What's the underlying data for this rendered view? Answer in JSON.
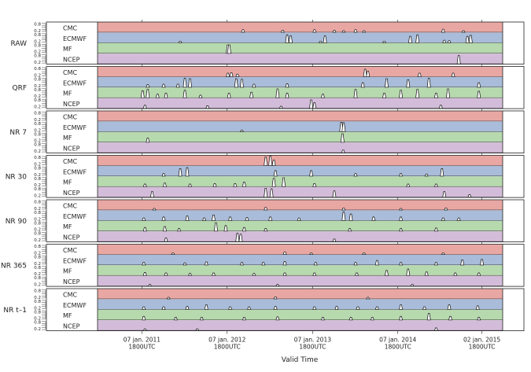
{
  "chart_data": {
    "type": "area",
    "title": "",
    "xlabel": "Valid Time",
    "ylabel": "",
    "x_ticks": [
      {
        "date": "2011-01-07",
        "line1": "07 jan. 2011",
        "line2": "1800UTC"
      },
      {
        "date": "2012-01-07",
        "line1": "07 jan. 2012",
        "line2": "1800UTC"
      },
      {
        "date": "2013-01-07",
        "line1": "07 jan. 2013",
        "line2": "1800UTC"
      },
      {
        "date": "2014-01-07",
        "line1": "07 jan. 2014",
        "line2": "1800UTC"
      },
      {
        "date": "2015-01-02",
        "line1": "02 jan. 2015",
        "line2": "1800UTC"
      }
    ],
    "x_range": [
      "2010-07-01",
      "2015-04-01"
    ],
    "y_range": [
      0,
      1
    ],
    "y_tick_labels": [
      "0.8",
      "0.2"
    ],
    "band_order": [
      "CMC",
      "ECMWF",
      "MF",
      "NCEP"
    ],
    "band_colors": {
      "CMC": "#e9a7a3",
      "ECMWF": "#a9bcd9",
      "MF": "#b7d9ae",
      "NCEP": "#d3bcd9"
    },
    "panels": [
      {
        "label": "RAW",
        "bands": {
          "CMC": [
            [
              "2012-03-15",
              0.3
            ],
            [
              "2012-09-01",
              0.25
            ],
            [
              "2013-01-15",
              0.3
            ],
            [
              "2013-04-10",
              0.25
            ],
            [
              "2013-05-20",
              0.2
            ],
            [
              "2013-07-10",
              0.3
            ],
            [
              "2013-08-15",
              0.2
            ],
            [
              "2014-07-20",
              0.35
            ],
            [
              "2014-10-15",
              0.2
            ]
          ],
          "ECMWF": [
            [
              "2011-06-20",
              0.2
            ],
            [
              "2012-09-20",
              0.85
            ],
            [
              "2012-10-05",
              0.75
            ],
            [
              "2013-02-10",
              0.2
            ],
            [
              "2013-03-01",
              0.75
            ],
            [
              "2013-11-10",
              0.2
            ],
            [
              "2014-03-01",
              0.7
            ],
            [
              "2014-04-01",
              0.85
            ],
            [
              "2014-07-25",
              0.3
            ],
            [
              "2014-08-15",
              0.25
            ],
            [
              "2014-11-01",
              0.7
            ],
            [
              "2014-11-15",
              0.8
            ]
          ],
          "MF": [
            [
              "2012-01-10",
              0.9
            ],
            [
              "2012-01-16",
              0.9
            ]
          ],
          "NCEP": [
            [
              "2014-09-25",
              0.9
            ]
          ]
        }
      },
      {
        "label": "QRF",
        "bands": {
          "CMC": [
            [
              "2012-01-10",
              0.4
            ],
            [
              "2012-01-25",
              0.45
            ],
            [
              "2012-02-20",
              0.3
            ],
            [
              "2013-08-20",
              0.8
            ],
            [
              "2013-09-01",
              0.6
            ],
            [
              "2014-04-10",
              0.4
            ],
            [
              "2014-09-01",
              0.4
            ]
          ],
          "ECMWF": [
            [
              "2011-02-01",
              0.3
            ],
            [
              "2011-04-10",
              0.35
            ],
            [
              "2011-06-10",
              0.35
            ],
            [
              "2011-07-10",
              0.95
            ],
            [
              "2011-08-01",
              0.9
            ],
            [
              "2012-02-15",
              0.9
            ],
            [
              "2012-03-10",
              0.85
            ],
            [
              "2012-05-01",
              0.35
            ],
            [
              "2012-09-20",
              0.4
            ],
            [
              "2013-08-10",
              0.5
            ],
            [
              "2013-11-20",
              0.9
            ],
            [
              "2014-02-20",
              0.8
            ],
            [
              "2014-05-20",
              0.95
            ],
            [
              "2014-12-20",
              0.5
            ]
          ],
          "MF": [
            [
              "2011-01-10",
              0.75
            ],
            [
              "2011-02-01",
              0.9
            ],
            [
              "2011-03-15",
              0.4
            ],
            [
              "2011-04-20",
              0.5
            ],
            [
              "2011-07-10",
              0.8
            ],
            [
              "2011-09-15",
              0.3
            ],
            [
              "2012-01-15",
              0.5
            ],
            [
              "2012-04-20",
              0.6
            ],
            [
              "2012-08-10",
              0.95
            ],
            [
              "2012-09-20",
              0.5
            ],
            [
              "2013-02-20",
              0.4
            ],
            [
              "2013-07-10",
              0.9
            ],
            [
              "2013-11-10",
              0.5
            ],
            [
              "2014-01-20",
              0.8
            ],
            [
              "2014-04-01",
              0.9
            ],
            [
              "2014-06-20",
              0.5
            ],
            [
              "2014-08-10",
              0.95
            ],
            [
              "2014-12-20",
              0.7
            ]
          ],
          "NCEP": [
            [
              "2011-01-20",
              0.35
            ],
            [
              "2011-10-15",
              0.3
            ],
            [
              "2012-08-25",
              0.25
            ],
            [
              "2013-01-01",
              0.9
            ],
            [
              "2013-01-15",
              0.6
            ],
            [
              "2014-07-10",
              0.35
            ]
          ]
        }
      },
      {
        "label": "NR 7",
        "bands": {
          "CMC": [],
          "ECMWF": [
            [
              "2012-03-10",
              0.2
            ],
            [
              "2013-05-10",
              1.0
            ],
            [
              "2013-05-20",
              0.95
            ]
          ],
          "MF": [
            [
              "2011-02-01",
              0.45
            ],
            [
              "2013-05-15",
              0.9
            ]
          ],
          "NCEP": [
            [
              "2013-05-18",
              0.3
            ]
          ]
        }
      },
      {
        "label": "NR 30",
        "bands": {
          "CMC": [
            [
              "2012-06-20",
              0.9
            ],
            [
              "2012-07-10",
              1.0
            ],
            [
              "2012-07-25",
              0.6
            ]
          ],
          "ECMWF": [
            [
              "2011-04-10",
              0.3
            ],
            [
              "2011-06-20",
              0.8
            ],
            [
              "2011-07-20",
              0.9
            ],
            [
              "2012-08-01",
              0.6
            ],
            [
              "2013-01-01",
              0.6
            ],
            [
              "2013-07-10",
              0.3
            ],
            [
              "2014-01-20",
              0.3
            ],
            [
              "2014-05-10",
              0.25
            ],
            [
              "2014-07-15",
              0.8
            ]
          ],
          "MF": [
            [
              "2011-01-20",
              0.3
            ],
            [
              "2011-04-15",
              0.4
            ],
            [
              "2011-08-01",
              0.3
            ],
            [
              "2011-11-15",
              0.35
            ],
            [
              "2012-02-10",
              0.35
            ],
            [
              "2012-03-20",
              0.5
            ],
            [
              "2012-07-25",
              0.9
            ],
            [
              "2012-09-05",
              0.95
            ],
            [
              "2013-01-15",
              0.35
            ],
            [
              "2014-02-20",
              0.3
            ],
            [
              "2014-06-20",
              0.3
            ]
          ],
          "NCEP": [
            [
              "2011-02-20",
              0.6
            ],
            [
              "2012-06-20",
              0.95
            ],
            [
              "2012-07-15",
              0.9
            ],
            [
              "2013-04-10",
              0.7
            ],
            [
              "2014-07-25",
              0.6
            ],
            [
              "2014-11-10",
              0.3
            ]
          ]
        }
      },
      {
        "label": "NR 90",
        "bands": {
          "CMC": [
            [
              "2011-03-01",
              0.2
            ],
            [
              "2012-06-20",
              0.3
            ],
            [
              "2013-05-20",
              0.25
            ],
            [
              "2014-01-20",
              0.2
            ],
            [
              "2014-08-01",
              0.25
            ]
          ],
          "ECMWF": [
            [
              "2011-01-15",
              0.3
            ],
            [
              "2011-04-10",
              0.4
            ],
            [
              "2011-07-20",
              0.5
            ],
            [
              "2011-10-01",
              0.3
            ],
            [
              "2011-11-10",
              0.6
            ],
            [
              "2012-01-20",
              0.4
            ],
            [
              "2012-04-01",
              0.35
            ],
            [
              "2012-07-10",
              0.4
            ],
            [
              "2012-11-10",
              0.3
            ],
            [
              "2013-05-20",
              0.9
            ],
            [
              "2013-06-20",
              0.7
            ],
            [
              "2013-09-25",
              0.4
            ],
            [
              "2014-01-20",
              0.4
            ],
            [
              "2014-07-20",
              0.3
            ],
            [
              "2014-09-25",
              0.3
            ]
          ],
          "MF": [
            [
              "2011-01-20",
              0.4
            ],
            [
              "2011-04-15",
              0.5
            ],
            [
              "2011-06-15",
              0.3
            ],
            [
              "2011-11-20",
              0.9
            ],
            [
              "2012-01-01",
              0.6
            ],
            [
              "2012-03-20",
              0.4
            ],
            [
              "2012-06-20",
              0.3
            ],
            [
              "2013-06-15",
              0.3
            ],
            [
              "2014-01-20",
              0.3
            ],
            [
              "2014-06-20",
              0.35
            ]
          ],
          "NCEP": [
            [
              "2011-04-20",
              0.4
            ],
            [
              "2012-02-20",
              0.9
            ],
            [
              "2012-03-05",
              0.8
            ],
            [
              "2013-04-10",
              0.3
            ]
          ]
        }
      },
      {
        "label": "NR 365",
        "bands": {
          "CMC": [
            [
              "2011-05-20",
              0.2
            ],
            [
              "2012-09-10",
              0.3
            ],
            [
              "2013-01-01",
              0.2
            ],
            [
              "2013-08-15",
              0.2
            ],
            [
              "2014-07-20",
              0.2
            ]
          ],
          "ECMWF": [
            [
              "2011-01-15",
              0.3
            ],
            [
              "2011-07-10",
              0.25
            ],
            [
              "2011-10-10",
              0.35
            ],
            [
              "2012-03-10",
              0.3
            ],
            [
              "2012-06-10",
              0.3
            ],
            [
              "2012-09-10",
              0.4
            ],
            [
              "2013-01-20",
              0.3
            ],
            [
              "2013-07-10",
              0.3
            ],
            [
              "2013-10-10",
              0.5
            ],
            [
              "2014-01-20",
              0.3
            ],
            [
              "2014-06-20",
              0.3
            ],
            [
              "2014-10-10",
              0.55
            ],
            [
              "2015-01-02",
              0.6
            ]
          ],
          "MF": [
            [
              "2011-01-20",
              0.35
            ],
            [
              "2011-04-20",
              0.3
            ],
            [
              "2011-08-01",
              0.25
            ],
            [
              "2011-11-10",
              0.3
            ],
            [
              "2012-05-01",
              0.25
            ],
            [
              "2012-09-10",
              0.3
            ],
            [
              "2013-01-15",
              0.3
            ],
            [
              "2013-07-15",
              0.3
            ],
            [
              "2013-11-20",
              0.55
            ],
            [
              "2014-02-20",
              0.7
            ],
            [
              "2014-05-10",
              0.4
            ],
            [
              "2014-09-10",
              0.3
            ],
            [
              "2014-12-20",
              0.3
            ]
          ],
          "NCEP": [
            [
              "2011-02-10",
              0.2
            ],
            [
              "2012-08-10",
              0.2
            ],
            [
              "2014-03-10",
              0.2
            ]
          ]
        }
      },
      {
        "label": "NR t–1",
        "bands": {
          "CMC": [
            [
              "2011-05-01",
              0.2
            ],
            [
              "2012-08-01",
              0.25
            ],
            [
              "2013-09-01",
              0.2
            ]
          ],
          "ECMWF": [
            [
              "2011-01-15",
              0.3
            ],
            [
              "2011-04-10",
              0.3
            ],
            [
              "2011-07-20",
              0.35
            ],
            [
              "2011-10-10",
              0.5
            ],
            [
              "2012-01-20",
              0.3
            ],
            [
              "2012-04-10",
              0.3
            ],
            [
              "2012-08-01",
              0.35
            ],
            [
              "2013-01-15",
              0.3
            ],
            [
              "2013-04-20",
              0.35
            ],
            [
              "2013-07-20",
              0.3
            ],
            [
              "2013-10-10",
              0.3
            ],
            [
              "2014-01-20",
              0.5
            ],
            [
              "2014-05-01",
              0.3
            ],
            [
              "2014-08-15",
              0.5
            ],
            [
              "2014-12-15",
              0.4
            ]
          ],
          "MF": [
            [
              "2011-01-15",
              0.4
            ],
            [
              "2011-06-01",
              0.3
            ],
            [
              "2011-09-20",
              0.3
            ],
            [
              "2012-03-20",
              0.3
            ],
            [
              "2012-08-10",
              0.35
            ],
            [
              "2013-02-20",
              0.3
            ],
            [
              "2013-06-20",
              0.3
            ],
            [
              "2013-09-20",
              0.3
            ],
            [
              "2014-01-20",
              0.4
            ],
            [
              "2014-05-20",
              0.7
            ],
            [
              "2014-08-20",
              0.4
            ],
            [
              "2014-12-20",
              0.3
            ]
          ],
          "NCEP": [
            [
              "2011-01-20",
              0.2
            ],
            [
              "2011-09-01",
              0.2
            ],
            [
              "2014-06-20",
              0.3
            ]
          ]
        }
      }
    ]
  }
}
